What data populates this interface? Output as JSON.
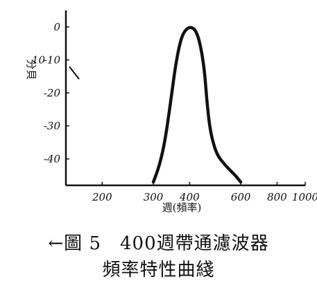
{
  "chart_data": {
    "type": "line",
    "title_line1": "←圖 5　400週帶通濾波器",
    "title_line2": "頻率特性曲綫",
    "xlabel": "週(頻率)",
    "ylabel": "分貝",
    "x_ticks": [
      200,
      300,
      400,
      600,
      800,
      1000
    ],
    "x_tick_labels": [
      "200",
      "300",
      "400",
      "600",
      "800",
      "1000"
    ],
    "y_ticks": [
      0,
      -10,
      -20,
      -30,
      -40
    ],
    "y_tick_labels": [
      "0",
      "-10",
      "-20",
      "-30",
      "-40"
    ],
    "xlim": [
      150,
      1000
    ],
    "ylim": [
      -48,
      5
    ],
    "x_scale": "log",
    "grid": false,
    "series": [
      {
        "color": "#111111",
        "x": [
          300,
          315,
          330,
          345,
          360,
          375,
          390,
          405,
          420,
          435,
          450,
          458,
          470,
          485,
          500,
          520,
          545,
          575,
          600
        ],
        "y": [
          -47,
          -42,
          -34,
          -22,
          -10,
          -3,
          -0.5,
          0,
          -1,
          -5,
          -13,
          -22,
          -31,
          -36,
          -39,
          -41,
          -43,
          -45,
          -47
        ]
      }
    ],
    "annotations": [
      "10"
    ]
  }
}
